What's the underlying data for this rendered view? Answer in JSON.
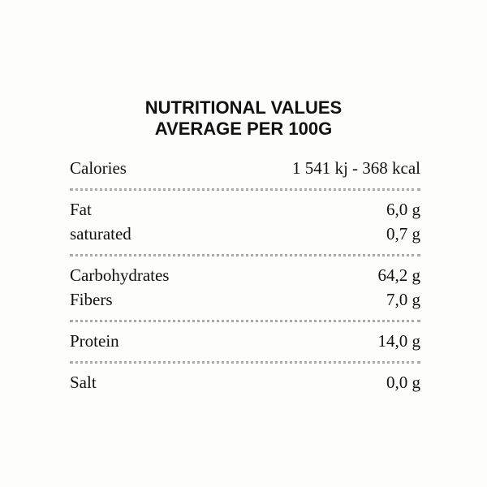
{
  "header": {
    "title": [
      "NUTRITIONAL VALUES",
      "AVERAGE PER 100G"
    ]
  },
  "table": {
    "groups": [
      [
        [
          "Calories",
          "1 541 kj - 368 kcal"
        ]
      ],
      [
        [
          "Fat",
          "6,0 g"
        ],
        [
          "saturated",
          "0,7 g"
        ]
      ],
      [
        [
          "Carbohydrates",
          "64,2 g"
        ],
        [
          "Fibers",
          "7,0 g"
        ]
      ],
      [
        [
          "Protein",
          "14,0 g"
        ]
      ],
      [
        [
          "Salt",
          "0,0 g"
        ]
      ]
    ]
  }
}
